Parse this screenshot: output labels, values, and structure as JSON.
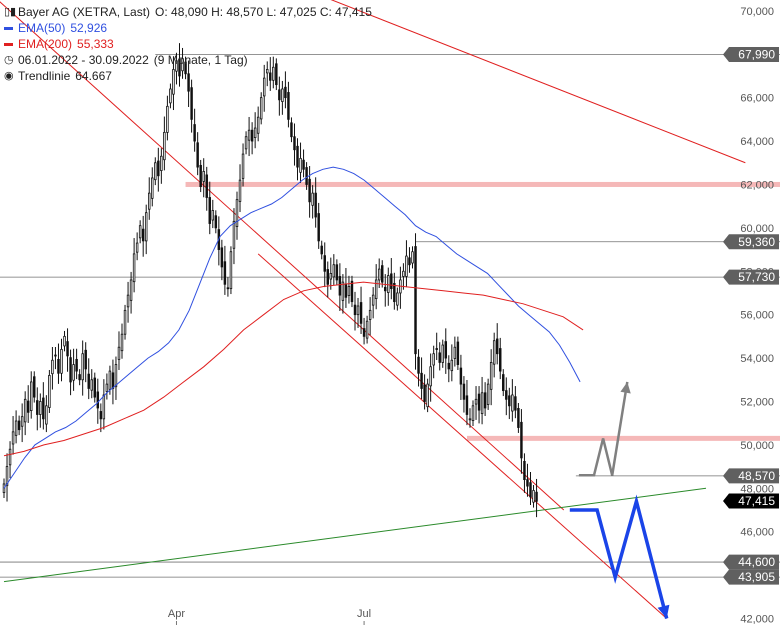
{
  "legend": {
    "title": "Bayer AG (XETRA, Last)",
    "ohlc": "O: 48,090  H: 48,570  L: 47,025  C: 47,415",
    "ema50_label": "EMA(50)",
    "ema50_value": "52,926",
    "ema200_label": "EMA(200)",
    "ema200_value": "55,333",
    "period": "06.01.2022 - 30.09.2022",
    "period_note": "(9 Monate, 1 Tag)",
    "trend_label": "Trendlinie",
    "trend_value": "64.667"
  },
  "colors": {
    "ema50": "#3050e0",
    "ema200": "#e02020",
    "channel": "#e02020",
    "trendline": "#2a8a2a",
    "resistance_band": "#f5b8b8",
    "projection_blue": "#1a44e8",
    "projection_grey": "#808080",
    "last_price_label": "#000000",
    "level_label": "#606060"
  },
  "chart_data": {
    "type": "candlestick",
    "title": "Bayer AG (XETRA, Last)",
    "ylim": [
      41.7,
      70.5
    ],
    "y_ticks": [
      42,
      44,
      46,
      48,
      50,
      52,
      54,
      56,
      58,
      60,
      62,
      64,
      66,
      68,
      70
    ],
    "y_tick_labels": [
      "42,000",
      "44,000",
      "46,000",
      "48,000",
      "50,000",
      "52,000",
      "54,000",
      "56,000",
      "58,000",
      "60,000",
      "62,000",
      "64,000",
      "66,000",
      "68,000",
      "70,000"
    ],
    "x_labels": [
      {
        "label": "Apr",
        "index": 57
      },
      {
        "label": "Jul",
        "index": 119
      }
    ],
    "x_range": [
      0,
      232
    ],
    "close": [
      48.2,
      49.0,
      49.8,
      50.6,
      51.1,
      50.7,
      51.3,
      52.1,
      51.5,
      52.9,
      52.2,
      51.4,
      52.0,
      51.2,
      51.8,
      53.2,
      53.9,
      54.1,
      53.3,
      54.4,
      55.0,
      54.1,
      52.9,
      53.7,
      53.4,
      53.0,
      54.2,
      53.5,
      52.6,
      53.0,
      52.2,
      51.7,
      51.2,
      52.3,
      52.8,
      53.4,
      52.6,
      53.7,
      54.5,
      55.1,
      56.2,
      56.9,
      57.6,
      58.8,
      59.3,
      60.1,
      59.4,
      60.7,
      61.6,
      62.3,
      63.0,
      62.4,
      63.3,
      64.4,
      65.6,
      66.4,
      67.3,
      67.7,
      67.0,
      67.8,
      67.1,
      66.3,
      65.0,
      64.0,
      62.8,
      61.9,
      62.6,
      61.4,
      60.2,
      60.8,
      60.0,
      59.0,
      58.2,
      57.4,
      57.2,
      58.9,
      60.3,
      61.3,
      62.2,
      63.4,
      64.2,
      64.5,
      64.0,
      64.6,
      65.1,
      66.0,
      66.9,
      67.3,
      66.8,
      67.4,
      66.6,
      65.9,
      66.4,
      66.0,
      65.0,
      64.2,
      63.6,
      62.8,
      63.2,
      62.7,
      62.0,
      61.2,
      61.6,
      60.5,
      59.4,
      58.8,
      58.0,
      57.4,
      57.9,
      58.3,
      57.6,
      56.9,
      57.5,
      56.8,
      57.3,
      56.6,
      56.0,
      56.4,
      55.6,
      55.0,
      55.7,
      56.2,
      56.9,
      57.6,
      58.1,
      57.5,
      57.1,
      57.8,
      57.2,
      56.6,
      57.0,
      57.6,
      58.0,
      58.7,
      58.3,
      58.9,
      54.2,
      53.3,
      52.6,
      52.0,
      52.8,
      53.6,
      54.2,
      54.4,
      53.8,
      54.6,
      54.0,
      53.5,
      53.9,
      54.5,
      53.7,
      52.8,
      52.1,
      51.4,
      51.2,
      51.8,
      52.1,
      51.6,
      52.4,
      51.7,
      52.8,
      53.8,
      54.8,
      54.2,
      53.4,
      52.5,
      52.1,
      51.8,
      52.3,
      51.6,
      50.8,
      49.4,
      48.4,
      48.1,
      47.6,
      47.9,
      47.4
    ],
    "ema50": [
      48.0,
      48.7,
      49.4,
      50.0,
      50.3,
      50.6,
      50.8,
      51.1,
      51.5,
      51.9,
      52.4,
      52.8,
      53.2,
      53.6,
      54.0,
      54.3,
      54.7,
      55.3,
      56.2,
      57.4,
      58.6,
      59.6,
      60.1,
      60.4,
      60.7,
      60.9,
      61.1,
      61.4,
      61.8,
      62.2,
      62.5,
      62.7,
      62.8,
      62.7,
      62.5,
      62.2,
      61.8,
      61.4,
      61.0,
      60.6,
      60.1,
      59.8,
      59.6,
      59.2,
      58.8,
      58.5,
      58.2,
      57.9,
      57.4,
      56.9,
      56.4,
      56.0,
      55.6,
      55.2,
      54.6,
      53.8,
      52.9
    ],
    "ema200": [
      49.5,
      49.7,
      50.0,
      50.2,
      50.5,
      50.8,
      51.2,
      51.6,
      52.2,
      52.9,
      53.6,
      54.4,
      55.3,
      56.0,
      56.7,
      57.1,
      57.3,
      57.4,
      57.5,
      57.4,
      57.3,
      57.2,
      57.1,
      57.0,
      56.9,
      56.7,
      56.5,
      56.2,
      55.9,
      55.3
    ],
    "levels": [
      {
        "value": 67.99,
        "label": "67,990"
      },
      {
        "value": 59.36,
        "label": "59,360"
      },
      {
        "value": 57.73,
        "label": "57,730"
      },
      {
        "value": 48.57,
        "label": "48,570"
      },
      {
        "value": 44.6,
        "label": "44,600"
      },
      {
        "value": 43.905,
        "label": "43,905"
      }
    ],
    "last_price": {
      "value": 47.415,
      "label": "47,415"
    },
    "resistance_zones": [
      62.0,
      50.3
    ],
    "channel": {
      "upper": [
        [
          -10,
          71.5
        ],
        [
          185,
          47.0
        ]
      ],
      "lower": [
        [
          84,
          58.8
        ],
        [
          219,
          42.0
        ]
      ]
    },
    "long_trendline": [
      [
        -10,
        77.0
      ],
      [
        245,
        63.0
      ]
    ],
    "green_trendline": [
      [
        0,
        43.7
      ],
      [
        232,
        48.0
      ]
    ],
    "projection_blue": [
      [
        187,
        47.0
      ],
      [
        196,
        47.0
      ],
      [
        202,
        43.9
      ],
      [
        209,
        47.4
      ],
      [
        219,
        42.0
      ]
    ],
    "projection_grey": [
      [
        190,
        48.6
      ],
      [
        195,
        48.6
      ],
      [
        198,
        50.3
      ],
      [
        201,
        48.6
      ],
      [
        206,
        52.9
      ]
    ]
  }
}
